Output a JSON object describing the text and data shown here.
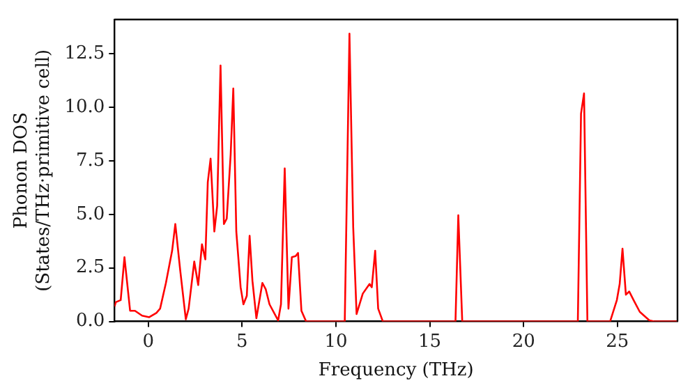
{
  "chart_data": {
    "type": "line",
    "xlabel": "Frequency (THz)",
    "ylabel": "Phonon DOS\n(States/THz·primitive cell)",
    "xlim": [
      -1.8,
      28.2
    ],
    "ylim": [
      0,
      14.1
    ],
    "xticks": [
      0,
      5,
      10,
      15,
      20,
      25
    ],
    "yticks": [
      {
        "value": 0,
        "label": "0.0"
      },
      {
        "value": 2.5,
        "label": "2.5"
      },
      {
        "value": 5,
        "label": "5.0"
      },
      {
        "value": 7.5,
        "label": "7.5"
      },
      {
        "value": 10,
        "label": "10.0"
      },
      {
        "value": 12.5,
        "label": "12.5"
      }
    ],
    "grid": false,
    "legend": false,
    "marker": "none",
    "line_style": "solid",
    "series": [
      {
        "color": "#ff0000",
        "x": [
          -1.8,
          -1.73,
          -1.47,
          -1.27,
          -0.97,
          -0.71,
          -0.33,
          0.05,
          0.43,
          0.63,
          0.94,
          1.27,
          1.44,
          1.7,
          2.0,
          2.15,
          2.45,
          2.66,
          2.86,
          3.04,
          3.17,
          3.32,
          3.52,
          3.67,
          3.85,
          4.03,
          4.18,
          4.39,
          4.53,
          4.69,
          4.92,
          5.07,
          5.25,
          5.4,
          5.55,
          5.76,
          6.08,
          6.26,
          6.46,
          6.92,
          7.07,
          7.27,
          7.47,
          7.65,
          7.85,
          7.98,
          8.16,
          8.41,
          10.47,
          10.72,
          10.92,
          11.1,
          11.43,
          11.79,
          11.91,
          12.09,
          12.25,
          12.5,
          16.37,
          16.52,
          16.73,
          22.89,
          23.06,
          23.22,
          23.4,
          24.61,
          24.97,
          25.12,
          25.27,
          25.45,
          25.63,
          25.86,
          26.19,
          26.7,
          26.95,
          28.2
        ],
        "values": [
          0.7,
          0.9,
          1.0,
          3.0,
          0.5,
          0.5,
          0.27,
          0.2,
          0.4,
          0.6,
          1.8,
          3.3,
          4.55,
          2.4,
          0.1,
          0.6,
          2.8,
          1.7,
          3.6,
          2.9,
          6.5,
          7.6,
          4.2,
          5.4,
          11.95,
          4.55,
          4.8,
          7.8,
          10.88,
          4.2,
          1.6,
          0.8,
          1.2,
          4.0,
          1.9,
          0.15,
          1.8,
          1.5,
          0.8,
          0.05,
          0.8,
          7.15,
          0.6,
          3.0,
          3.05,
          3.2,
          0.5,
          0,
          0,
          13.44,
          4.4,
          0.35,
          1.3,
          1.75,
          1.6,
          3.3,
          0.6,
          0,
          0,
          4.96,
          0,
          0,
          9.7,
          10.65,
          0,
          0,
          1.0,
          1.75,
          3.4,
          1.25,
          1.4,
          1.0,
          0.45,
          0.05,
          0,
          0
        ]
      }
    ]
  }
}
